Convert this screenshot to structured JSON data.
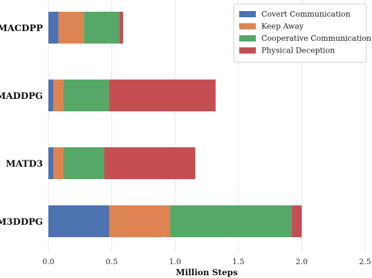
{
  "chart_data": {
    "type": "bar",
    "orientation": "horizontal",
    "stacked": true,
    "categories": [
      "MACDPP",
      "MADDPG",
      "MATD3",
      "M3DDPG"
    ],
    "series": [
      {
        "name": "Covert Communication",
        "color": "#4c72b0",
        "values": [
          0.08,
          0.04,
          0.04,
          0.48
        ]
      },
      {
        "name": "Keep Away",
        "color": "#dd8452",
        "values": [
          0.2,
          0.08,
          0.08,
          0.48
        ]
      },
      {
        "name": "Cooperative Communication",
        "color": "#55a868",
        "values": [
          0.28,
          0.36,
          0.32,
          0.96
        ]
      },
      {
        "name": "Physical Deception",
        "color": "#c44e52",
        "values": [
          0.03,
          0.84,
          0.72,
          0.08
        ]
      }
    ],
    "xlabel": "Million Steps",
    "ylabel": "",
    "xlim": [
      0,
      2.5
    ],
    "xticks": [
      "0.0",
      "0.5",
      "1.0",
      "1.5",
      "2.0",
      "2.5"
    ],
    "grid": true,
    "legend_position": "top-right",
    "background": "#ffffff",
    "grid_color": "#e5e5e5"
  }
}
